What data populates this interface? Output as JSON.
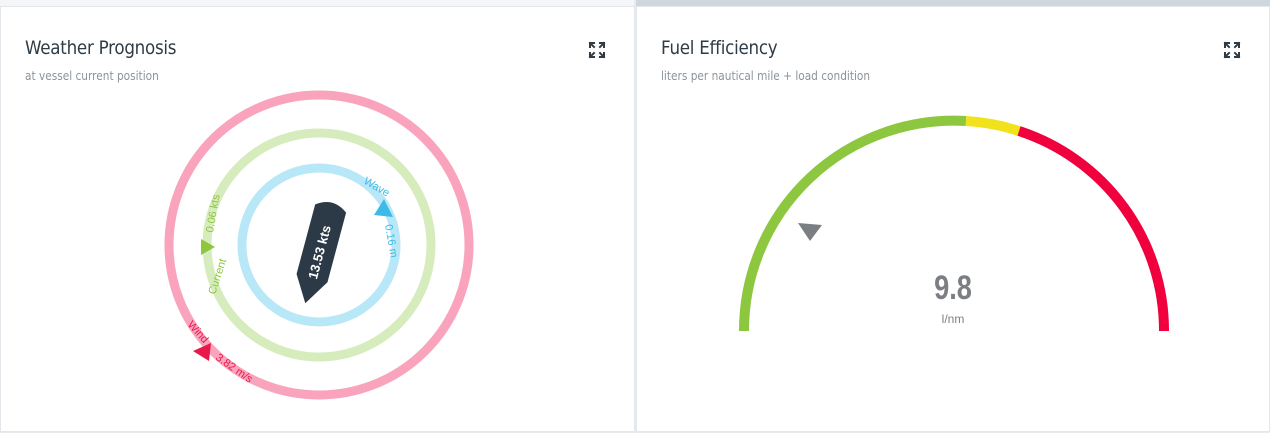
{
  "weather": {
    "title": "Weather Prognosis",
    "subtitle": "at vessel current position",
    "vessel_speed": "13.53 kts",
    "wave": {
      "label": "Wave",
      "value": "0.16 m",
      "color": "#3cbbe8",
      "ring_color": "#b8e8f7"
    },
    "current": {
      "label": "Current",
      "value": "0.06 kts",
      "color": "#8dc63f",
      "ring_color": "#d7ecbd"
    },
    "wind": {
      "label": "Wind",
      "value": "3.82 m/s",
      "color": "#e8194a",
      "ring_color": "#f9a3bd"
    },
    "expand_icon": "expand-icon"
  },
  "fuel": {
    "title": "Fuel Efficiency",
    "subtitle": "liters per nautical mile + load condition",
    "value": "9.8",
    "unit": "l/nm",
    "zones": {
      "green": "#8dc63f",
      "yellow": "#f2e21b",
      "red": "#f0003c"
    },
    "marker_color": "#7b7f83",
    "expand_icon": "expand-icon"
  }
}
